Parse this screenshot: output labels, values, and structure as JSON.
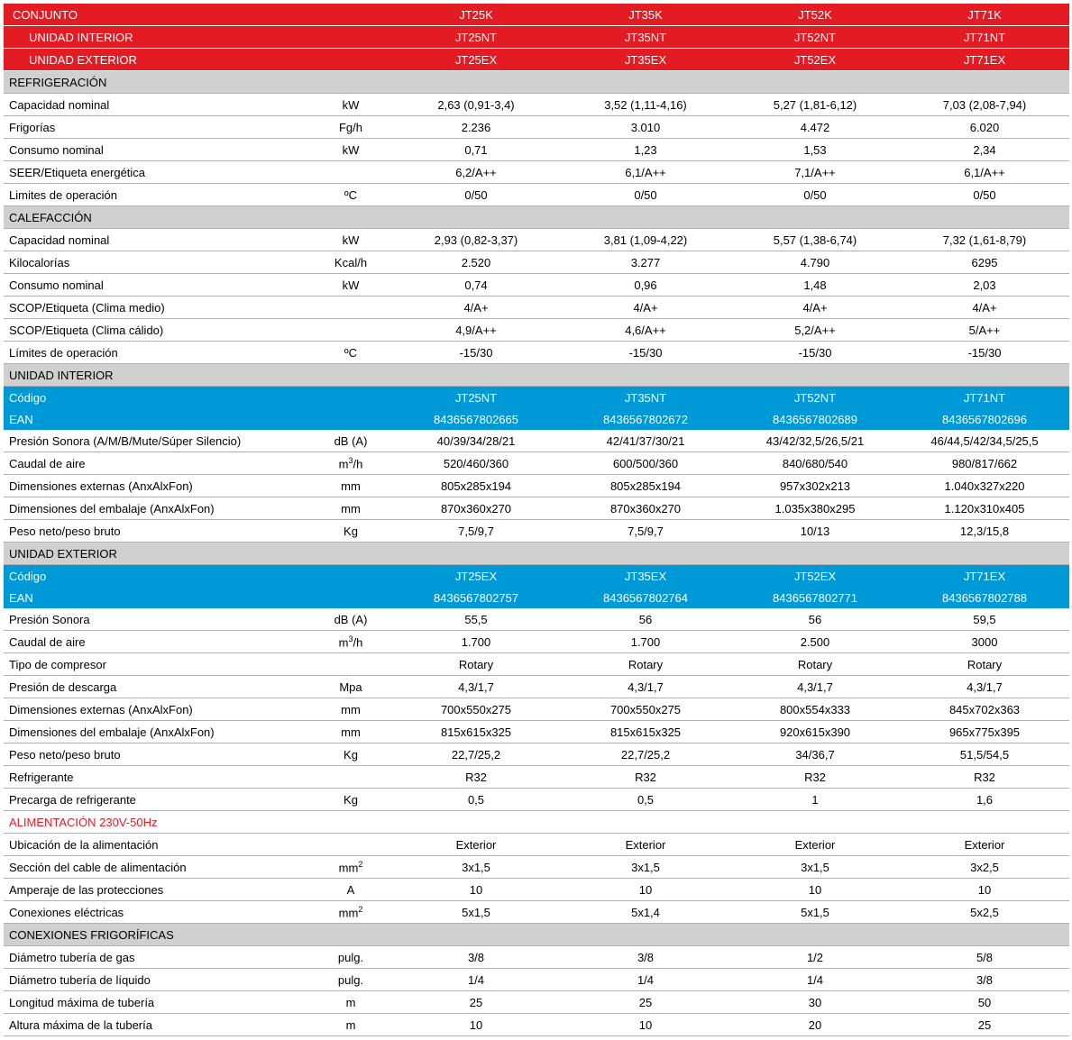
{
  "colors": {
    "red": "#e31b23",
    "blue": "#0099d8",
    "gray": "#d0d0d0",
    "border": "#b0b0b0",
    "text": "#000000",
    "white": "#ffffff"
  },
  "rows": [
    {
      "type": "red",
      "sub": false,
      "cells": [
        "CONJUNTO",
        "",
        "JT25K",
        "JT35K",
        "JT52K",
        "JT71K"
      ]
    },
    {
      "type": "red",
      "sub": true,
      "cells": [
        "UNIDAD INTERIOR",
        "",
        "JT25NT",
        "JT35NT",
        "JT52NT",
        "JT71NT"
      ]
    },
    {
      "type": "red",
      "sub": true,
      "cells": [
        "UNIDAD EXTERIOR",
        "",
        "JT25EX",
        "JT35EX",
        "JT52EX",
        "JT71EX"
      ]
    },
    {
      "type": "gray",
      "cells": [
        "REFRIGERACIÓN",
        "",
        "",
        "",
        "",
        ""
      ]
    },
    {
      "type": "data",
      "cells": [
        "Capacidad nominal",
        "kW",
        "2,63 (0,91-3,4)",
        "3,52 (1,11-4,16)",
        "5,27 (1,81-6,12)",
        "7,03 (2,08-7,94)"
      ]
    },
    {
      "type": "data",
      "cells": [
        "Frigorías",
        "Fg/h",
        "2.236",
        "3.010",
        "4.472",
        "6.020"
      ]
    },
    {
      "type": "data",
      "cells": [
        "Consumo nominal",
        "kW",
        "0,71",
        "1,23",
        "1,53",
        "2,34"
      ]
    },
    {
      "type": "data",
      "cells": [
        "SEER/Etiqueta energética",
        "",
        "6,2/A++",
        "6,1/A++",
        "7,1/A++",
        "6,1/A++"
      ]
    },
    {
      "type": "data",
      "cells": [
        "Limites de operación",
        "ºC",
        "0/50",
        "0/50",
        "0/50",
        "0/50"
      ]
    },
    {
      "type": "gray",
      "cells": [
        "CALEFACCIÓN",
        "",
        "",
        "",
        "",
        ""
      ]
    },
    {
      "type": "data",
      "cells": [
        "Capacidad nominal",
        "kW",
        "2,93 (0,82-3,37)",
        "3,81 (1,09-4,22)",
        "5,57 (1,38-6,74)",
        "7,32 (1,61-8,79)"
      ]
    },
    {
      "type": "data",
      "cells": [
        "Kilocalorías",
        "Kcal/h",
        "2.520",
        "3.277",
        "4.790",
        "6295"
      ]
    },
    {
      "type": "data",
      "cells": [
        "Consumo nominal",
        "kW",
        "0,74",
        "0,96",
        "1,48",
        "2,03"
      ]
    },
    {
      "type": "data",
      "cells": [
        "SCOP/Etiqueta (Clima medio)",
        "",
        "4/A+",
        "4/A+",
        "4/A+",
        "4/A+"
      ]
    },
    {
      "type": "data",
      "cells": [
        "SCOP/Etiqueta (Clima cálido)",
        "",
        "4,9/A++",
        "4,6/A++",
        "5,2/A++",
        "5/A++"
      ]
    },
    {
      "type": "data",
      "cells": [
        "Límites de operación",
        "ºC",
        "-15/30",
        "-15/30",
        "-15/30",
        "-15/30"
      ]
    },
    {
      "type": "gray",
      "cells": [
        "UNIDAD INTERIOR",
        "",
        "",
        "",
        "",
        ""
      ]
    },
    {
      "type": "blue",
      "cells": [
        "Código",
        "",
        "JT25NT",
        "JT35NT",
        "JT52NT",
        "JT71NT"
      ]
    },
    {
      "type": "blue",
      "cells": [
        "EAN",
        "",
        "8436567802665",
        "8436567802672",
        "8436567802689",
        "8436567802696"
      ]
    },
    {
      "type": "data",
      "cells": [
        "Presión Sonora (A/M/B/Mute/Súper Silencio)",
        "dB (A)",
        "40/39/34/28/21",
        "42/41/37/30/21",
        "43/42/32,5/26,5/21",
        "46/44,5/42/34,5/25,5"
      ]
    },
    {
      "type": "data",
      "cells": [
        "Caudal de aire",
        "m³/h",
        "520/460/360",
        "600/500/360",
        "840/680/540",
        "980/817/662"
      ]
    },
    {
      "type": "data",
      "cells": [
        "Dimensiones externas (AnxAlxFon)",
        "mm",
        "805x285x194",
        "805x285x194",
        "957x302x213",
        "1.040x327x220"
      ]
    },
    {
      "type": "data",
      "cells": [
        "Dimensiones del embalaje (AnxAlxFon)",
        "mm",
        "870x360x270",
        "870x360x270",
        "1.035x380x295",
        "1.120x310x405"
      ]
    },
    {
      "type": "data",
      "cells": [
        "Peso neto/peso bruto",
        "Kg",
        "7,5/9,7",
        "7,5/9,7",
        "10/13",
        "12,3/15,8"
      ]
    },
    {
      "type": "gray",
      "cells": [
        "UNIDAD EXTERIOR",
        "",
        "",
        "",
        "",
        ""
      ]
    },
    {
      "type": "blue",
      "cells": [
        "Código",
        "",
        "JT25EX",
        "JT35EX",
        "JT52EX",
        "JT71EX"
      ]
    },
    {
      "type": "blue",
      "cells": [
        "EAN",
        "",
        "8436567802757",
        "8436567802764",
        "8436567802771",
        "8436567802788"
      ]
    },
    {
      "type": "data",
      "cells": [
        "Presión Sonora",
        "dB (A)",
        "55,5",
        "56",
        "56",
        "59,5"
      ]
    },
    {
      "type": "data",
      "cells": [
        "Caudal de aire",
        "m³/h",
        "1.700",
        "1.700",
        "2.500",
        "3000"
      ]
    },
    {
      "type": "data",
      "cells": [
        "Tipo de compresor",
        "",
        "Rotary",
        "Rotary",
        "Rotary",
        "Rotary"
      ]
    },
    {
      "type": "data",
      "cells": [
        "Presión de descarga",
        "Mpa",
        "4,3/1,7",
        "4,3/1,7",
        "4,3/1,7",
        "4,3/1,7"
      ]
    },
    {
      "type": "data",
      "cells": [
        "Dimensiones externas (AnxAlxFon)",
        "mm",
        "700x550x275",
        "700x550x275",
        "800x554x333",
        "845x702x363"
      ]
    },
    {
      "type": "data",
      "cells": [
        "Dimensiones del embalaje (AnxAlxFon)",
        "mm",
        "815x615x325",
        "815x615x325",
        "920x615x390",
        "965x775x395"
      ]
    },
    {
      "type": "data",
      "cells": [
        "Peso neto/peso bruto",
        "Kg",
        "22,7/25,2",
        "22,7/25,2",
        "34/36,7",
        "51,5/54,5"
      ]
    },
    {
      "type": "data",
      "cells": [
        "Refrigerante",
        "",
        "R32",
        "R32",
        "R32",
        "R32"
      ]
    },
    {
      "type": "data",
      "cells": [
        "Precarga de refrigerante",
        "Kg",
        "0,5",
        "0,5",
        "1",
        "1,6"
      ]
    },
    {
      "type": "redtitle",
      "cells": [
        "ALIMENTACIÓN 230V-50Hz",
        "",
        "",
        "",
        "",
        ""
      ]
    },
    {
      "type": "data",
      "cells": [
        "Ubicación de la alimentación",
        "",
        "Exterior",
        "Exterior",
        "Exterior",
        "Exterior"
      ]
    },
    {
      "type": "data",
      "cells": [
        "Sección del cable de alimentación",
        "mm²",
        "3x1,5",
        "3x1,5",
        "3x1,5",
        "3x2,5"
      ]
    },
    {
      "type": "data",
      "cells": [
        "Amperaje de las protecciones",
        "A",
        "10",
        "10",
        "10",
        "10"
      ]
    },
    {
      "type": "data",
      "cells": [
        "Conexiones eléctricas",
        "mm²",
        "5x1,5",
        "5x1,4",
        "5x1,5",
        "5x2,5"
      ]
    },
    {
      "type": "gray",
      "cells": [
        "CONEXIONES FRIGORÍFICAS",
        "",
        "",
        "",
        "",
        ""
      ]
    },
    {
      "type": "data",
      "cells": [
        "Diámetro tubería de gas",
        "pulg.",
        "3/8",
        "3/8",
        "1/2",
        "5/8"
      ]
    },
    {
      "type": "data",
      "cells": [
        "Diámetro tubería de líquido",
        "pulg.",
        "1/4",
        "1/4",
        "1/4",
        "3/8"
      ]
    },
    {
      "type": "data",
      "cells": [
        "Longitud máxima de tubería",
        "m",
        "25",
        "25",
        "30",
        "50"
      ]
    },
    {
      "type": "data",
      "cells": [
        "Altura máxima de la tubería",
        "m",
        "10",
        "10",
        "20",
        "25"
      ]
    }
  ]
}
